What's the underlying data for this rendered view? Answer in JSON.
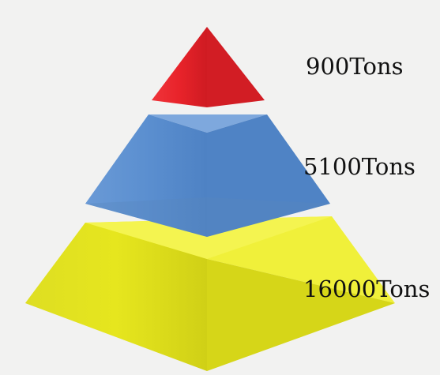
{
  "tiers": [
    {
      "label": "900Tons",
      "color_front": "#e8232a",
      "color_side": "#c21a20",
      "color_top": "#f04a4f"
    },
    {
      "label": "5100Tons",
      "color_front": "#5b8fd0",
      "color_side": "#4a7cbc",
      "color_top": "#7fa9de"
    },
    {
      "label": "16000Tons",
      "color_front": "#e4e41e",
      "color_side": "#c9c914",
      "color_top": "#f2f241"
    }
  ]
}
